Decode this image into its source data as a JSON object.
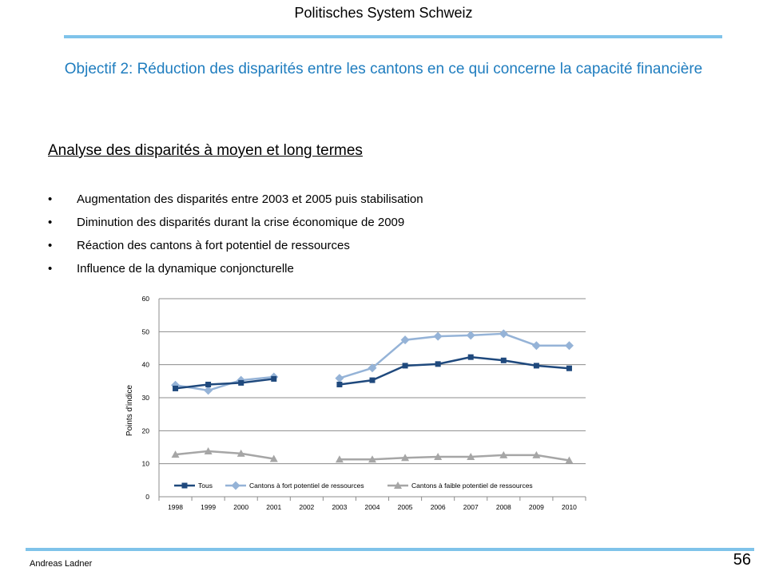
{
  "header": {
    "title": "Politisches System Schweiz"
  },
  "slide": {
    "title": "Objectif 2: Réduction des disparités entre les cantons en ce qui concerne la capacité financière",
    "section_title": "Analyse des disparités à moyen et long termes",
    "bullet_symbol": "•",
    "bullets": [
      "Augmentation des disparités entre 2003 et 2005 puis stabilisation",
      "Diminution des disparités durant la crise économique de 2009",
      "Réaction des cantons à fort potentiel de ressources",
      "Influence de la dynamique conjoncturelle"
    ]
  },
  "footer": {
    "author": "Andreas Ladner",
    "page_number": "56"
  },
  "chart_data": {
    "type": "line",
    "title": "",
    "xlabel": "",
    "ylabel": "Points d'indice",
    "x": [
      "1998",
      "1999",
      "2000",
      "2001",
      "2002",
      "2003",
      "2004",
      "2005",
      "2006",
      "2007",
      "2008",
      "2009",
      "2010"
    ],
    "yticks": [
      0,
      10,
      20,
      30,
      40,
      50,
      60
    ],
    "ylim": [
      0,
      60
    ],
    "grid": "horizontal",
    "legend": "bottom-inside",
    "series": [
      {
        "name": "Tous",
        "color": "#1f497d",
        "marker": "square",
        "values": [
          32.8,
          34.0,
          34.5,
          35.7,
          null,
          34.0,
          35.3,
          39.7,
          40.2,
          42.3,
          41.3,
          39.7,
          38.9
        ]
      },
      {
        "name": "Cantons à fort potentiel de ressources",
        "color": "#95b3d7",
        "marker": "diamond",
        "values": [
          33.8,
          32.2,
          35.3,
          36.3,
          null,
          35.9,
          39.0,
          47.5,
          48.6,
          48.9,
          49.4,
          45.8,
          45.8
        ]
      },
      {
        "name": "Cantons à faible potentiel de ressources",
        "color": "#a6a6a6",
        "marker": "triangle",
        "values": [
          12.8,
          13.8,
          13.1,
          11.5,
          null,
          11.3,
          11.3,
          11.8,
          12.1,
          12.1,
          12.6,
          12.6,
          11.0
        ]
      }
    ]
  }
}
